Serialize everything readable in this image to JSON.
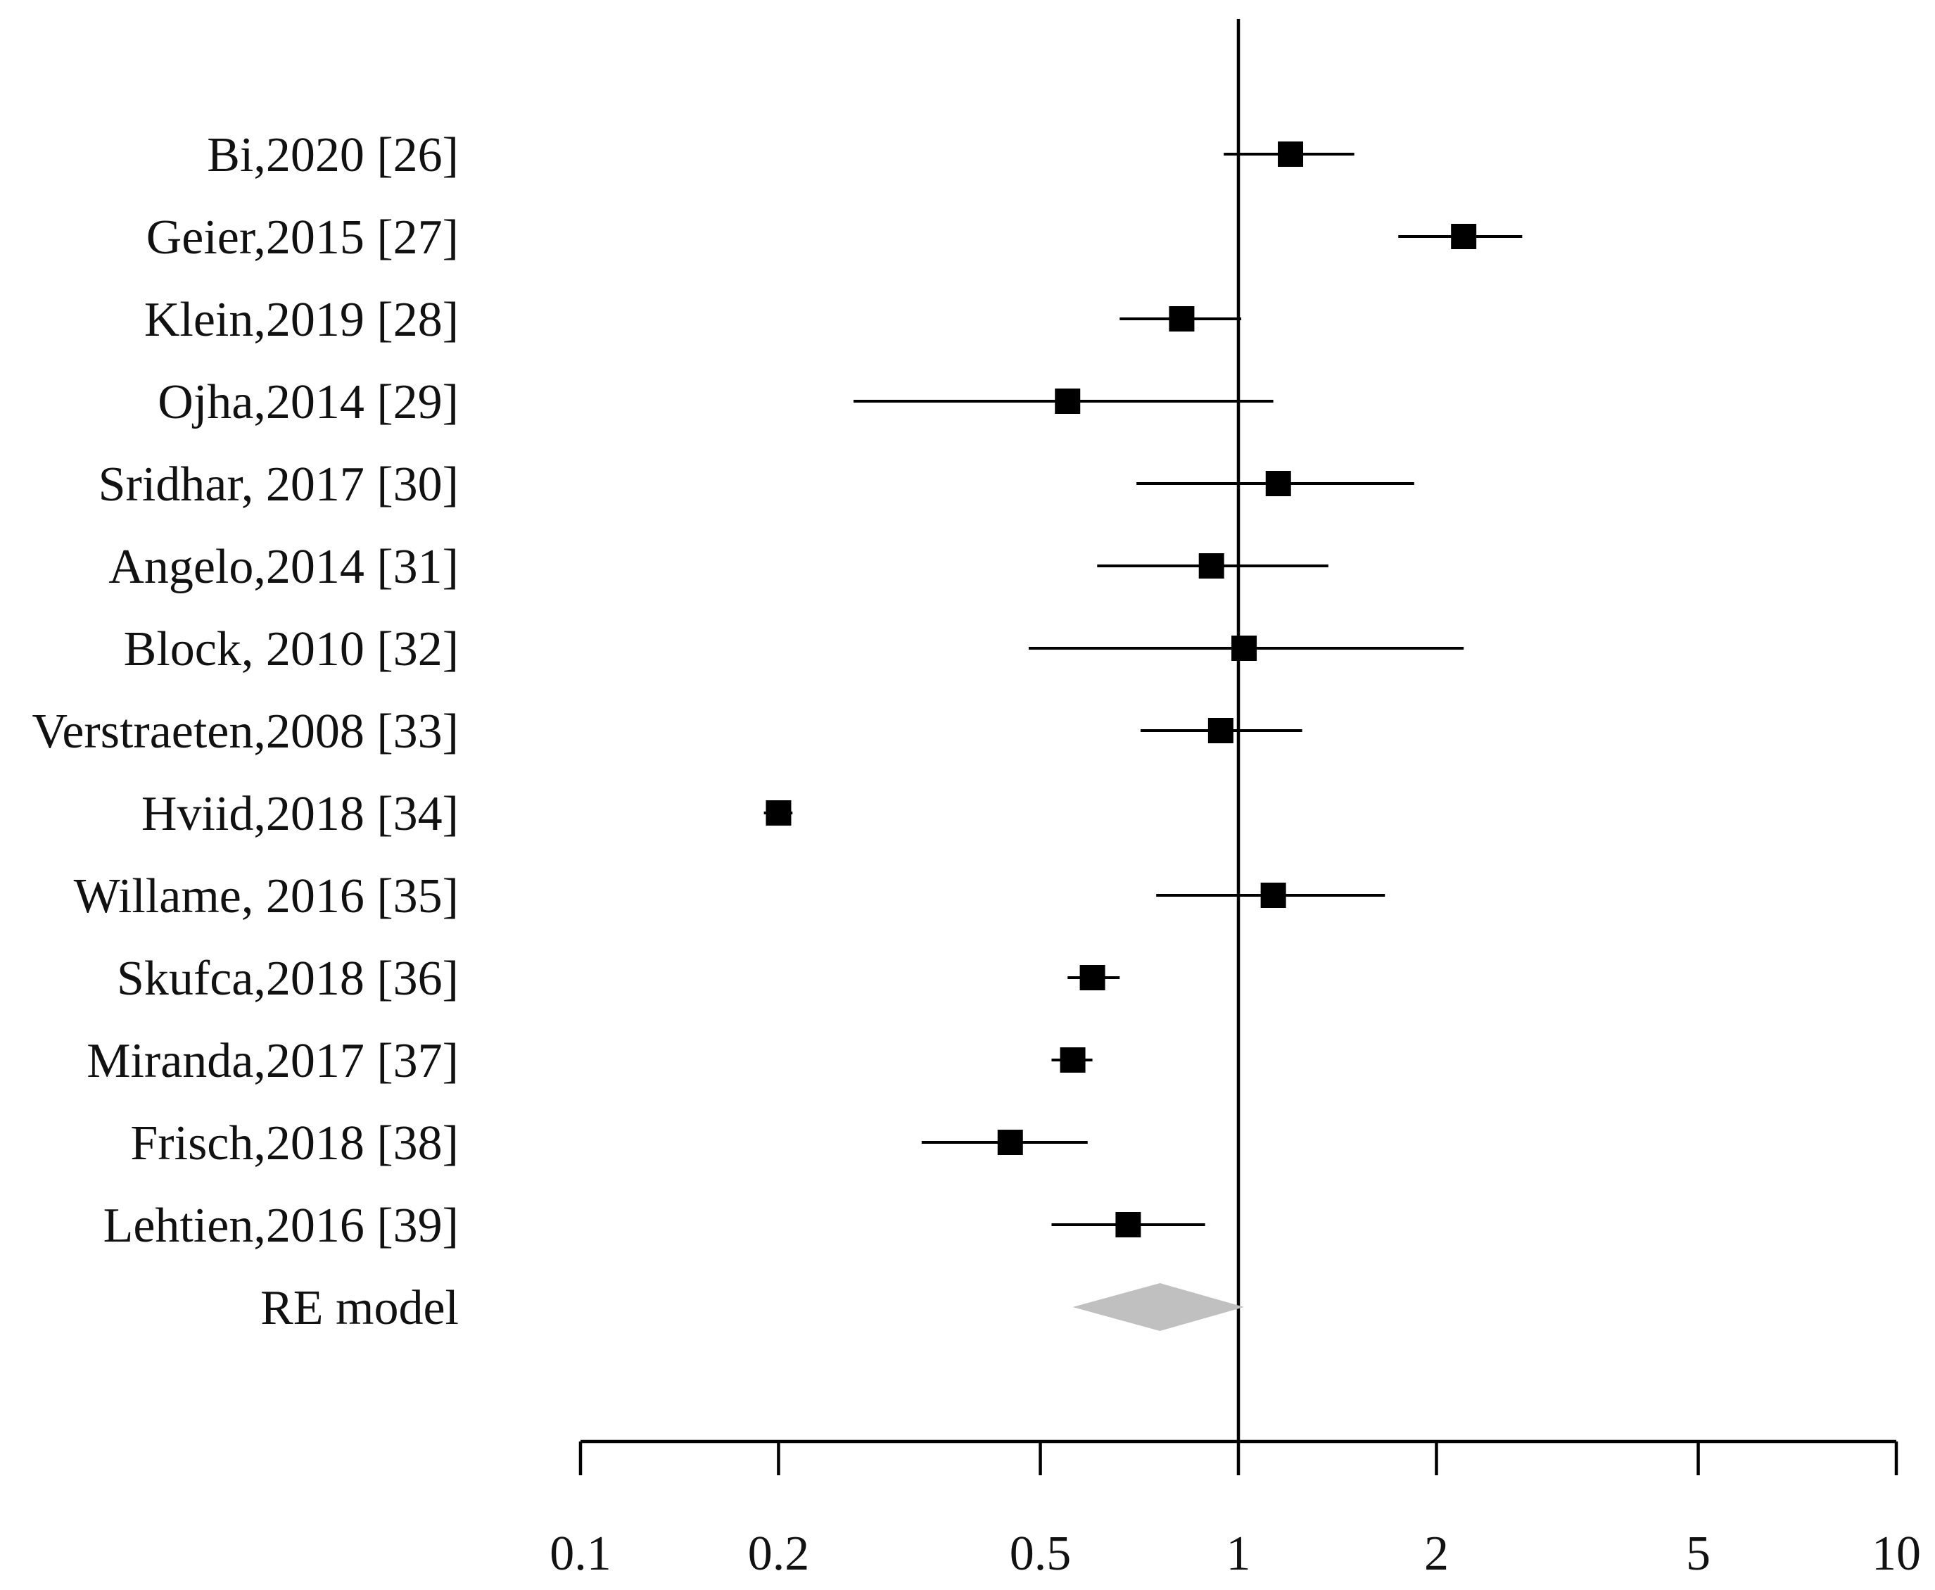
{
  "chart_data": {
    "type": "forest",
    "x_scale": "log",
    "xlim": [
      0.1,
      10
    ],
    "reference_line": 1,
    "x_ticks": [
      {
        "value": 0.1,
        "label": "0.1"
      },
      {
        "value": 0.2,
        "label": "0.2"
      },
      {
        "value": 0.5,
        "label": "0.5"
      },
      {
        "value": 1,
        "label": "1"
      },
      {
        "value": 2,
        "label": "2"
      },
      {
        "value": 5,
        "label": "5"
      },
      {
        "value": 10,
        "label": "10"
      }
    ],
    "studies": [
      {
        "label": "Bi,2020 [26]",
        "estimate": 1.2,
        "ci_low": 0.95,
        "ci_high": 1.5
      },
      {
        "label": "Geier,2015 [27]",
        "estimate": 2.2,
        "ci_low": 1.75,
        "ci_high": 2.7
      },
      {
        "label": "Klein,2019 [28]",
        "estimate": 0.82,
        "ci_low": 0.66,
        "ci_high": 1.01
      },
      {
        "label": "Ojha,2014 [29]",
        "estimate": 0.55,
        "ci_low": 0.26,
        "ci_high": 1.13
      },
      {
        "label": "Sridhar, 2017 [30]",
        "estimate": 1.15,
        "ci_low": 0.7,
        "ci_high": 1.85
      },
      {
        "label": "Angelo,2014 [31]",
        "estimate": 0.91,
        "ci_low": 0.61,
        "ci_high": 1.37
      },
      {
        "label": "Block, 2010 [32]",
        "estimate": 1.02,
        "ci_low": 0.48,
        "ci_high": 2.2
      },
      {
        "label": "Verstraeten,2008 [33]",
        "estimate": 0.94,
        "ci_low": 0.71,
        "ci_high": 1.25
      },
      {
        "label": "Hviid,2018 [34]",
        "estimate": 0.2,
        "ci_low": 0.19,
        "ci_high": 0.21
      },
      {
        "label": "Willame, 2016 [35]",
        "estimate": 1.13,
        "ci_low": 0.75,
        "ci_high": 1.67
      },
      {
        "label": "Skufca,2018 [36]",
        "estimate": 0.6,
        "ci_low": 0.55,
        "ci_high": 0.66
      },
      {
        "label": "Miranda,2017 [37]",
        "estimate": 0.56,
        "ci_low": 0.52,
        "ci_high": 0.6
      },
      {
        "label": "Frisch,2018 [38]",
        "estimate": 0.45,
        "ci_low": 0.33,
        "ci_high": 0.59
      },
      {
        "label": "Lehtien,2016 [39]",
        "estimate": 0.68,
        "ci_low": 0.52,
        "ci_high": 0.89
      }
    ],
    "summary": {
      "label": "RE model",
      "estimate": 0.76,
      "ci_low": 0.56,
      "ci_high": 1.02
    },
    "colors": {
      "marker": "#000000",
      "line": "#000000",
      "summary": "#c0c0c0"
    }
  }
}
